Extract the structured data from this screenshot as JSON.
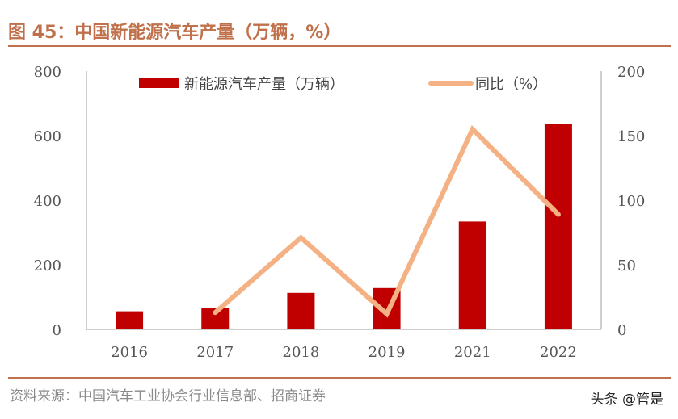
{
  "header": {
    "title": "图 45：中国新能源汽车产量（万辆，%）"
  },
  "footer": {
    "source": "资料来源：中国汽车工业协会行业信息部、招商证券",
    "watermark": "头条 @管是"
  },
  "chart_data": {
    "type": "bar+line",
    "categories": [
      "2016",
      "2017",
      "2018",
      "2019",
      "2021",
      "2022"
    ],
    "series": [
      {
        "name": "新能源汽车产量（万辆）",
        "type": "bar",
        "axis": "left",
        "color": "#c00000",
        "values": [
          56,
          65,
          113,
          128,
          334,
          635
        ]
      },
      {
        "name": "同比（%）",
        "type": "line",
        "axis": "right",
        "color": "#f4b183",
        "values": [
          null,
          13,
          71,
          12,
          155,
          89
        ]
      }
    ],
    "y_left": {
      "ylim": [
        0,
        800
      ],
      "ticks": [
        "0",
        "200",
        "400",
        "600",
        "800"
      ]
    },
    "y_right": {
      "ylim": [
        0,
        200
      ],
      "ticks": [
        "0",
        "50",
        "100",
        "150",
        "200"
      ]
    },
    "grid": false,
    "legend": "top"
  }
}
